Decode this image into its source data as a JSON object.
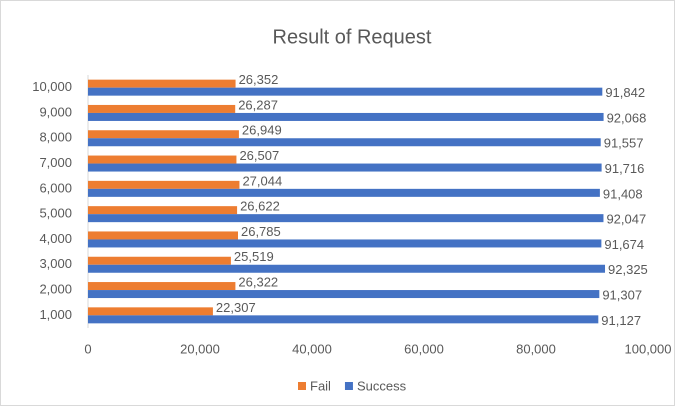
{
  "chart_data": {
    "type": "hbar",
    "title": "Result of Request",
    "categories": [
      "1,000",
      "2,000",
      "3,000",
      "4,000",
      "5,000",
      "6,000",
      "7,000",
      "8,000",
      "9,000",
      "10,000"
    ],
    "series": [
      {
        "name": "Fail",
        "color": "#ed7d31",
        "values": [
          22307,
          26322,
          25519,
          26785,
          26622,
          27044,
          26507,
          26949,
          26287,
          26352
        ],
        "value_labels": [
          "22,307",
          "26,322",
          "25,519",
          "26,785",
          "26,622",
          "27,044",
          "26,507",
          "26,949",
          "26,287",
          "26,352"
        ]
      },
      {
        "name": "Success",
        "color": "#4472c4",
        "values": [
          91127,
          91307,
          92325,
          91674,
          92047,
          91408,
          91716,
          91557,
          92068,
          91842
        ],
        "value_labels": [
          "91,127",
          "91,307",
          "92,325",
          "91,674",
          "92,047",
          "91,408",
          "91,716",
          "91,557",
          "92,068",
          "91,842"
        ]
      }
    ],
    "xlim": [
      0,
      100000
    ],
    "xticks": [
      0,
      {
        "value": 20000,
        "label": "20,000"
      },
      {
        "value": 40000,
        "label": "40,000"
      },
      {
        "value": 60000,
        "label": "60,000"
      },
      {
        "value": 80000,
        "label": "80,000"
      },
      {
        "value": 100000,
        "label": "100,000"
      }
    ],
    "grid": false,
    "legend": "bottom"
  }
}
